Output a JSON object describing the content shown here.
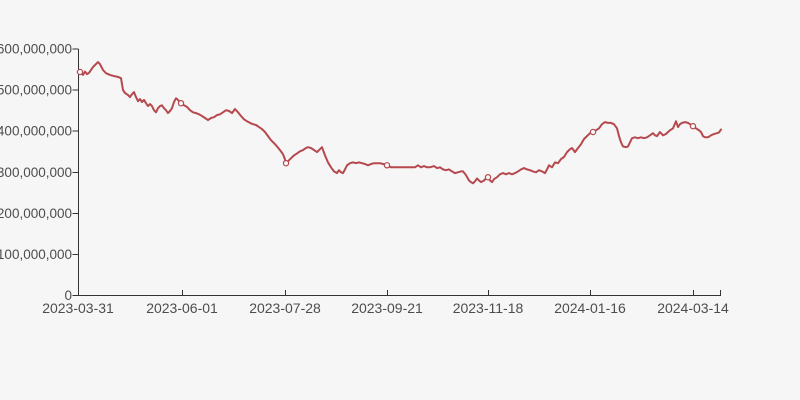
{
  "chart_data": {
    "type": "line",
    "title": "",
    "legend": "none",
    "grid": false,
    "x_axis": {
      "tick_labels": [
        "2023-03-31",
        "2023-06-01",
        "2023-07-28",
        "2023-09-21",
        "2023-11-18",
        "2024-01-16",
        "2024-03-14"
      ]
    },
    "y_axis": {
      "min": 0,
      "max": 600000000,
      "tick_values": [
        0,
        100000000,
        200000000,
        300000000,
        400000000,
        500000000,
        600000000
      ],
      "tick_labels": [
        "0",
        "100,000,000",
        "200,000,000",
        "300,000,000",
        "400,000,000",
        "500,000,000",
        "600,000,000"
      ]
    },
    "value_unit_multiplier": 1000000,
    "point_format": "[x_px, value_in_millions]",
    "series": [
      {
        "name": "value",
        "color": "#b5494e",
        "marker_style": "hollow-circle-at-tick-dates",
        "marker_points": [
          [
            80,
            544
          ],
          [
            181,
            468
          ],
          [
            286,
            322
          ],
          [
            387,
            317
          ],
          [
            488,
            288
          ],
          [
            593,
            398
          ],
          [
            693,
            412
          ]
        ],
        "points": [
          [
            80,
            544
          ],
          [
            83,
            537
          ],
          [
            85,
            545
          ],
          [
            87,
            539
          ],
          [
            89,
            542
          ],
          [
            91,
            549
          ],
          [
            93,
            556
          ],
          [
            95,
            561
          ],
          [
            98,
            568
          ],
          [
            100,
            563
          ],
          [
            103,
            549
          ],
          [
            106,
            541
          ],
          [
            110,
            537
          ],
          [
            114,
            534
          ],
          [
            118,
            532
          ],
          [
            121,
            529
          ],
          [
            123,
            500
          ],
          [
            125,
            493
          ],
          [
            128,
            488
          ],
          [
            130,
            483
          ],
          [
            132,
            490
          ],
          [
            134,
            495
          ],
          [
            136,
            483
          ],
          [
            138,
            473
          ],
          [
            140,
            478
          ],
          [
            142,
            471
          ],
          [
            144,
            476
          ],
          [
            146,
            468
          ],
          [
            148,
            461
          ],
          [
            150,
            466
          ],
          [
            152,
            461
          ],
          [
            154,
            451
          ],
          [
            156,
            446
          ],
          [
            158,
            456
          ],
          [
            160,
            461
          ],
          [
            162,
            463
          ],
          [
            164,
            456
          ],
          [
            166,
            451
          ],
          [
            168,
            444
          ],
          [
            170,
            449
          ],
          [
            172,
            456
          ],
          [
            174,
            471
          ],
          [
            176,
            480
          ],
          [
            178,
            476
          ],
          [
            181,
            468
          ],
          [
            184,
            463
          ],
          [
            187,
            459
          ],
          [
            190,
            451
          ],
          [
            193,
            446
          ],
          [
            196,
            444
          ],
          [
            199,
            441
          ],
          [
            202,
            437
          ],
          [
            205,
            432
          ],
          [
            208,
            427
          ],
          [
            211,
            432
          ],
          [
            214,
            434
          ],
          [
            217,
            439
          ],
          [
            220,
            441
          ],
          [
            223,
            446
          ],
          [
            226,
            451
          ],
          [
            229,
            449
          ],
          [
            232,
            444
          ],
          [
            235,
            454
          ],
          [
            238,
            446
          ],
          [
            241,
            437
          ],
          [
            244,
            429
          ],
          [
            247,
            424
          ],
          [
            250,
            420
          ],
          [
            253,
            417
          ],
          [
            256,
            415
          ],
          [
            259,
            410
          ],
          [
            262,
            405
          ],
          [
            265,
            398
          ],
          [
            268,
            388
          ],
          [
            271,
            378
          ],
          [
            274,
            371
          ],
          [
            277,
            363
          ],
          [
            280,
            354
          ],
          [
            283,
            344
          ],
          [
            285,
            331
          ],
          [
            286,
            322
          ],
          [
            288,
            327
          ],
          [
            291,
            334
          ],
          [
            294,
            341
          ],
          [
            297,
            346
          ],
          [
            300,
            351
          ],
          [
            303,
            354
          ],
          [
            306,
            359
          ],
          [
            308,
            361
          ],
          [
            311,
            359
          ],
          [
            314,
            354
          ],
          [
            317,
            349
          ],
          [
            320,
            356
          ],
          [
            322,
            361
          ],
          [
            325,
            341
          ],
          [
            328,
            324
          ],
          [
            331,
            312
          ],
          [
            334,
            302
          ],
          [
            337,
            298
          ],
          [
            339,
            305
          ],
          [
            341,
            300
          ],
          [
            343,
            298
          ],
          [
            345,
            307
          ],
          [
            347,
            317
          ],
          [
            350,
            322
          ],
          [
            353,
            324
          ],
          [
            356,
            322
          ],
          [
            359,
            324
          ],
          [
            362,
            322
          ],
          [
            365,
            320
          ],
          [
            368,
            317
          ],
          [
            371,
            320
          ],
          [
            374,
            322
          ],
          [
            377,
            322
          ],
          [
            380,
            322
          ],
          [
            383,
            320
          ],
          [
            387,
            317
          ],
          [
            391,
            312
          ],
          [
            395,
            312
          ],
          [
            400,
            312
          ],
          [
            405,
            312
          ],
          [
            410,
            312
          ],
          [
            415,
            312
          ],
          [
            418,
            317
          ],
          [
            421,
            312
          ],
          [
            424,
            315
          ],
          [
            427,
            312
          ],
          [
            430,
            312
          ],
          [
            434,
            315
          ],
          [
            437,
            310
          ],
          [
            440,
            312
          ],
          [
            443,
            307
          ],
          [
            446,
            305
          ],
          [
            449,
            307
          ],
          [
            452,
            302
          ],
          [
            455,
            298
          ],
          [
            458,
            300
          ],
          [
            461,
            302
          ],
          [
            463,
            302
          ],
          [
            466,
            293
          ],
          [
            469,
            280
          ],
          [
            471,
            276
          ],
          [
            473,
            273
          ],
          [
            475,
            278
          ],
          [
            477,
            285
          ],
          [
            479,
            280
          ],
          [
            481,
            276
          ],
          [
            484,
            280
          ],
          [
            486,
            285
          ],
          [
            488,
            288
          ],
          [
            490,
            280
          ],
          [
            492,
            276
          ],
          [
            494,
            283
          ],
          [
            497,
            288
          ],
          [
            500,
            295
          ],
          [
            503,
            298
          ],
          [
            506,
            295
          ],
          [
            509,
            298
          ],
          [
            512,
            295
          ],
          [
            515,
            298
          ],
          [
            518,
            302
          ],
          [
            521,
            307
          ],
          [
            524,
            310
          ],
          [
            527,
            307
          ],
          [
            530,
            305
          ],
          [
            533,
            302
          ],
          [
            536,
            300
          ],
          [
            539,
            305
          ],
          [
            542,
            302
          ],
          [
            545,
            298
          ],
          [
            547,
            307
          ],
          [
            549,
            317
          ],
          [
            552,
            312
          ],
          [
            555,
            324
          ],
          [
            558,
            322
          ],
          [
            561,
            332
          ],
          [
            564,
            337
          ],
          [
            567,
            349
          ],
          [
            570,
            356
          ],
          [
            572,
            359
          ],
          [
            575,
            349
          ],
          [
            578,
            359
          ],
          [
            581,
            368
          ],
          [
            584,
            381
          ],
          [
            587,
            388
          ],
          [
            590,
            395
          ],
          [
            593,
            398
          ],
          [
            596,
            402
          ],
          [
            599,
            407
          ],
          [
            602,
            417
          ],
          [
            605,
            422
          ],
          [
            608,
            420
          ],
          [
            611,
            420
          ],
          [
            614,
            417
          ],
          [
            617,
            407
          ],
          [
            619,
            388
          ],
          [
            621,
            373
          ],
          [
            623,
            363
          ],
          [
            626,
            361
          ],
          [
            628,
            363
          ],
          [
            630,
            373
          ],
          [
            632,
            383
          ],
          [
            635,
            385
          ],
          [
            638,
            383
          ],
          [
            641,
            385
          ],
          [
            644,
            383
          ],
          [
            647,
            385
          ],
          [
            650,
            390
          ],
          [
            653,
            395
          ],
          [
            655,
            390
          ],
          [
            657,
            388
          ],
          [
            660,
            398
          ],
          [
            663,
            390
          ],
          [
            666,
            393
          ],
          [
            668,
            398
          ],
          [
            670,
            402
          ],
          [
            673,
            407
          ],
          [
            676,
            424
          ],
          [
            678,
            410
          ],
          [
            680,
            417
          ],
          [
            682,
            420
          ],
          [
            685,
            422
          ],
          [
            688,
            420
          ],
          [
            690,
            417
          ],
          [
            693,
            412
          ],
          [
            696,
            407
          ],
          [
            699,
            402
          ],
          [
            701,
            398
          ],
          [
            703,
            388
          ],
          [
            705,
            385
          ],
          [
            708,
            385
          ],
          [
            711,
            390
          ],
          [
            714,
            393
          ],
          [
            717,
            395
          ],
          [
            719,
            397
          ],
          [
            721,
            404
          ]
        ]
      }
    ],
    "colors": {
      "background": "#f6f6f6",
      "axis": "#333333",
      "tick_label": "#4d4d4d",
      "line": "#b5494e"
    }
  }
}
